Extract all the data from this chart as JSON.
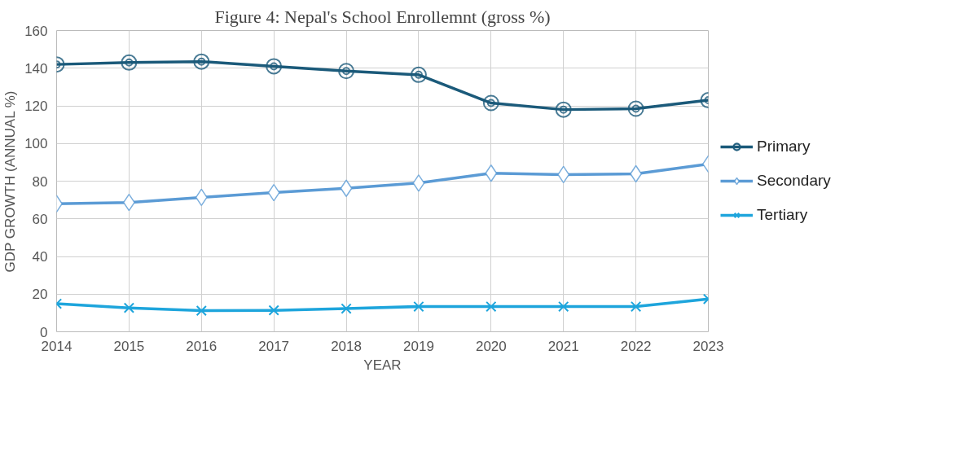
{
  "chart_data": {
    "type": "line",
    "title": "Figure 4: Nepal's School Enrollemnt (gross %)",
    "xlabel": "YEAR",
    "ylabel": "GDP GROWTH (ANNUAL %)",
    "x": [
      2014,
      2015,
      2016,
      2017,
      2018,
      2019,
      2020,
      2021,
      2022,
      2023
    ],
    "series": [
      {
        "name": "Primary",
        "color": "#1b5a7a",
        "marker": "circle",
        "values": [
          142,
          143,
          143.5,
          141,
          138.5,
          136.5,
          121.5,
          118,
          118.5,
          123
        ]
      },
      {
        "name": "Secondary",
        "color": "#5b9bd5",
        "marker": "diamond",
        "values": [
          68,
          68.7,
          71.4,
          73.9,
          76.2,
          79,
          84.2,
          83.5,
          83.9,
          89.1
        ]
      },
      {
        "name": "Tertiary",
        "color": "#1ea5dc",
        "marker": "cross",
        "values": [
          14.9,
          12.7,
          11.2,
          11.4,
          12.3,
          13.4,
          13.4,
          13.4,
          13.4,
          17.4
        ]
      }
    ],
    "xlim": [
      2014,
      2023
    ],
    "xticks": [
      2014,
      2015,
      2016,
      2017,
      2018,
      2019,
      2020,
      2021,
      2022,
      2023
    ],
    "ylim": [
      0,
      160
    ],
    "yticks": [
      0,
      20,
      40,
      60,
      80,
      100,
      120,
      140,
      160
    ],
    "grid": true,
    "legend": "right",
    "line_style": "solid"
  }
}
